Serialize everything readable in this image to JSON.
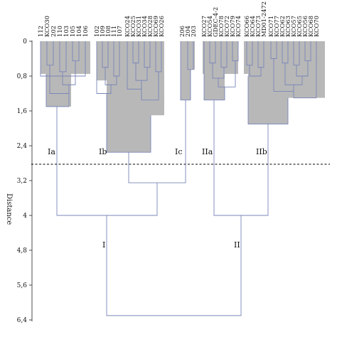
{
  "chart_data": {
    "type": "dendrogram",
    "ylabel": "Distance",
    "y_ticks": [
      "0",
      "0,8",
      "1,6",
      "2,4",
      "3,2",
      "4",
      "4,8",
      "5,6",
      "6,4"
    ],
    "ylim": [
      0,
      6.4
    ],
    "cutoff_distance": 2.9,
    "leaves": [
      "112",
      "KCO30",
      "202",
      "110",
      "103",
      "105",
      "104",
      "106",
      "102",
      "109",
      "108",
      "111",
      "107",
      "KCO24",
      "KCO25",
      "KCO31",
      "KCO34",
      "KCO28",
      "KCO69",
      "KCO26",
      "206",
      "204",
      "203",
      "KCO27",
      "KCO54",
      "GDEC-4-2",
      "KCO78",
      "KCO72",
      "KCO79",
      "KCO74",
      "KCO66",
      "KCO64",
      "KCO73",
      "MD01-2472",
      "KCO71",
      "KCO77",
      "KCO62",
      "KCO63",
      "KCO57",
      "KCO65",
      "KCO56",
      "KCO68",
      "KCO70"
    ],
    "cluster_labels": {
      "I": "I",
      "II": "II",
      "Ia": "Ia",
      "Ib": "Ib",
      "Ic": "Ic",
      "IIa": "IIa",
      "IIb": "IIb"
    },
    "merges": {
      "Ia": 1.5,
      "Ib": 2.55,
      "Ic": 1.35,
      "IIa": 1.35,
      "IIb": 1.9,
      "Ib_Ic": 3.25,
      "I": 4.0,
      "II": 4.0,
      "root": 6.3
    }
  }
}
